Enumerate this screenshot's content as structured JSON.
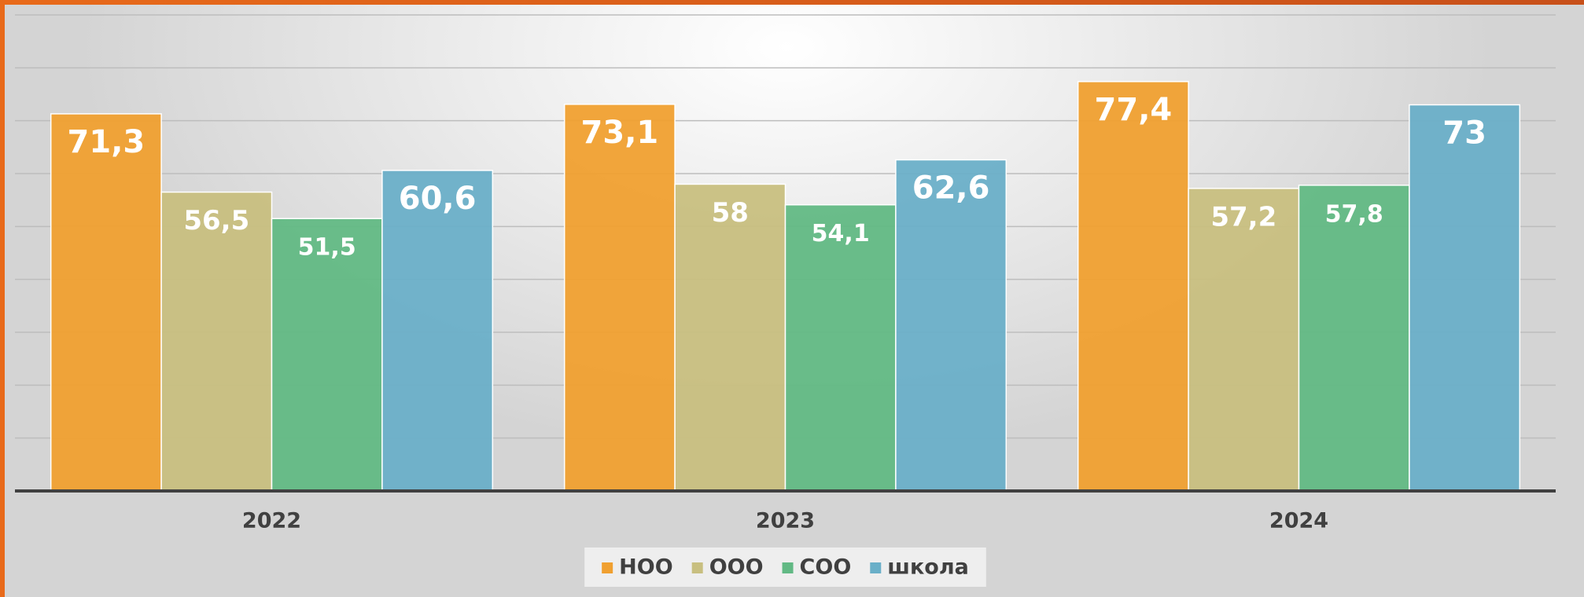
{
  "chart_data": {
    "type": "bar",
    "categories": [
      "2022",
      "2023",
      "2024"
    ],
    "series": [
      {
        "name": "НОО",
        "color": "#f0a030",
        "values": [
          71.3,
          73.1,
          77.4
        ],
        "value_labels": [
          "71,3",
          "73,1",
          "77,4"
        ]
      },
      {
        "name": "ООО",
        "color": "#c8bf80",
        "values": [
          56.5,
          58,
          57.2
        ],
        "value_labels": [
          "56,5",
          "58",
          "57,2"
        ]
      },
      {
        "name": "СОО",
        "color": "#62b984",
        "values": [
          51.5,
          54.1,
          57.8
        ],
        "value_labels": [
          "51,5",
          "54,1",
          "57,8"
        ]
      },
      {
        "name": "школа",
        "color": "#6aafc8",
        "values": [
          60.6,
          62.6,
          73
        ],
        "value_labels": [
          "60,6",
          "62,6",
          "73"
        ]
      }
    ],
    "ylim": [
      0,
      90
    ],
    "yticks": [
      0,
      10,
      20,
      30,
      40,
      50,
      60,
      70,
      80,
      90
    ],
    "grid": true,
    "legend": "bottom"
  }
}
